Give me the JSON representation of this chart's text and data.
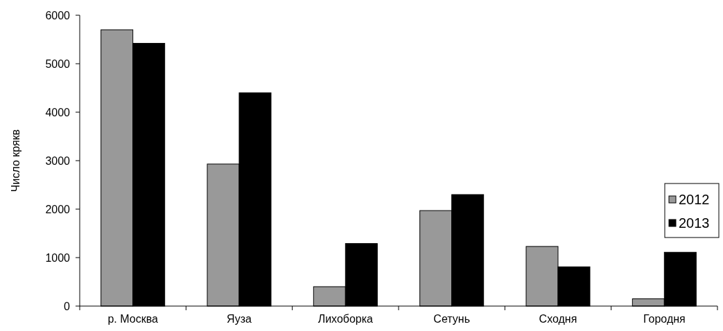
{
  "chart_data": {
    "type": "bar",
    "ylabel": "Число крякв",
    "categories": [
      "р. Москва",
      "Яуза",
      "Лихоборка",
      "Сетунь",
      "Сходня",
      "Городня"
    ],
    "series": [
      {
        "name": "2012",
        "color": "#999999",
        "values": [
          5700,
          2930,
          400,
          1970,
          1230,
          150
        ]
      },
      {
        "name": "2013",
        "color": "#000000",
        "values": [
          5420,
          4400,
          1290,
          2300,
          810,
          1110
        ]
      }
    ],
    "ylim": [
      0,
      6000
    ],
    "yticks": [
      0,
      1000,
      2000,
      3000,
      4000,
      5000,
      6000
    ],
    "grid": false,
    "legend": "right"
  }
}
